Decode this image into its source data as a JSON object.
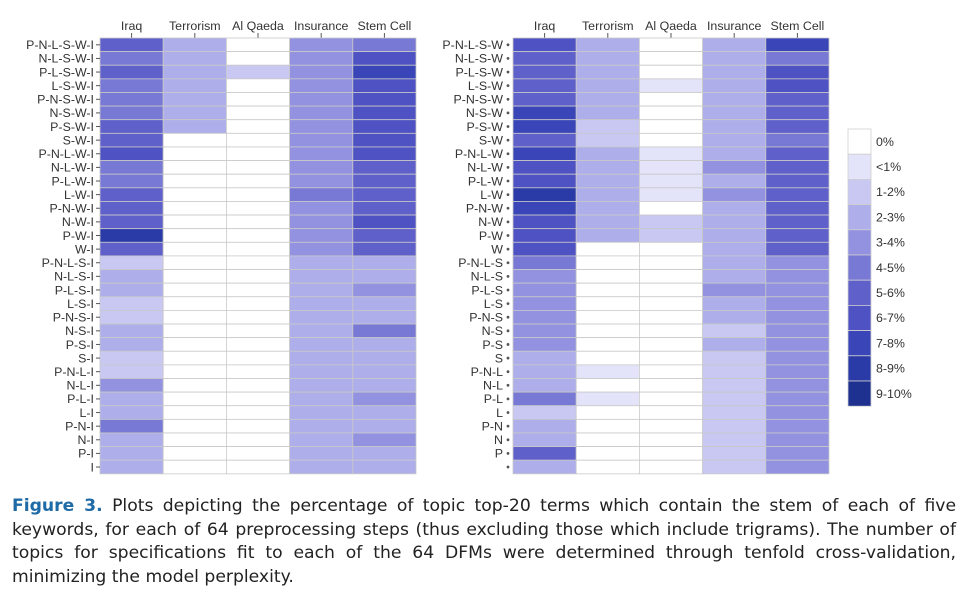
{
  "colors": {
    "scale": [
      "#ffffff",
      "#e3e3fa",
      "#c8c8f3",
      "#aeaeeb",
      "#9292e0",
      "#7878d5",
      "#6060cb",
      "#4f52c2",
      "#3a46b8",
      "#2a3aa6",
      "#1e3090"
    ],
    "caption_label": "#1d6aa6"
  },
  "chart_data": [
    {
      "type": "heatmap",
      "columns": [
        "Iraq",
        "Terrorism",
        "Al Qaeda",
        "Insurance",
        "Stem Cell"
      ],
      "rows": [
        "P-N-L-S-W-I",
        "N-L-S-W-I",
        "P-L-S-W-I",
        "L-S-W-I",
        "P-N-S-W-I",
        "N-S-W-I",
        "P-S-W-I",
        "S-W-I",
        "P-N-L-W-I",
        "N-L-W-I",
        "P-L-W-I",
        "L-W-I",
        "P-N-W-I",
        "N-W-I",
        "P-W-I",
        "W-I",
        "P-N-L-S-I",
        "N-L-S-I",
        "P-L-S-I",
        "L-S-I",
        "P-N-S-I",
        "N-S-I",
        "P-S-I",
        "S-I",
        "P-N-L-I",
        "N-L-I",
        "P-L-I",
        "L-I",
        "P-N-I",
        "N-I",
        "P-I",
        "I"
      ],
      "value_unit": "color bin index (0 = 0%, 1 = <1%, 2 = 1-2%, ... 10 = 9-10%)",
      "values": [
        [
          6,
          3,
          0,
          4,
          5
        ],
        [
          5,
          3,
          0,
          4,
          7
        ],
        [
          6,
          3,
          2,
          4,
          8
        ],
        [
          5,
          3,
          0,
          4,
          7
        ],
        [
          5,
          3,
          0,
          4,
          7
        ],
        [
          5,
          3,
          0,
          4,
          7
        ],
        [
          6,
          3,
          0,
          4,
          7
        ],
        [
          6,
          0,
          0,
          4,
          7
        ],
        [
          7,
          0,
          0,
          4,
          7
        ],
        [
          5,
          0,
          0,
          4,
          6
        ],
        [
          5,
          0,
          0,
          4,
          6
        ],
        [
          6,
          0,
          0,
          5,
          6
        ],
        [
          6,
          0,
          0,
          4,
          6
        ],
        [
          6,
          0,
          0,
          4,
          7
        ],
        [
          9,
          0,
          0,
          4,
          6
        ],
        [
          6,
          0,
          0,
          4,
          6
        ],
        [
          2,
          0,
          0,
          3,
          3
        ],
        [
          3,
          0,
          0,
          3,
          3
        ],
        [
          3,
          0,
          0,
          3,
          4
        ],
        [
          2,
          0,
          0,
          3,
          3
        ],
        [
          2,
          0,
          0,
          3,
          3
        ],
        [
          3,
          0,
          0,
          3,
          5
        ],
        [
          3,
          0,
          0,
          3,
          3
        ],
        [
          2,
          0,
          0,
          3,
          3
        ],
        [
          2,
          0,
          0,
          3,
          3
        ],
        [
          4,
          0,
          0,
          3,
          3
        ],
        [
          3,
          0,
          0,
          3,
          4
        ],
        [
          3,
          0,
          0,
          3,
          3
        ],
        [
          5,
          0,
          0,
          3,
          3
        ],
        [
          3,
          0,
          0,
          3,
          4
        ],
        [
          3,
          0,
          0,
          3,
          3
        ],
        [
          3,
          0,
          0,
          3,
          3
        ]
      ]
    },
    {
      "type": "heatmap",
      "columns": [
        "Iraq",
        "Terrorism",
        "Al Qaeda",
        "Insurance",
        "Stem Cell"
      ],
      "rows": [
        "P-N-L-S-W",
        "N-L-S-W",
        "P-L-S-W",
        "L-S-W",
        "P-N-S-W",
        "N-S-W",
        "P-S-W",
        "S-W",
        "P-N-L-W",
        "N-L-W",
        "P-L-W",
        "L-W",
        "P-N-W",
        "N-W",
        "P-W",
        "W",
        "P-N-L-S",
        "N-L-S",
        "P-L-S",
        "L-S",
        "P-N-S",
        "N-S",
        "P-S",
        "S",
        "P-N-L",
        "N-L",
        "P-L",
        "L",
        "P-N",
        "N",
        "P",
        ""
      ],
      "value_unit": "color bin index (0 = 0%, 1 = <1%, 2 = 1-2%, ... 10 = 9-10%)",
      "values": [
        [
          7,
          3,
          0,
          3,
          8
        ],
        [
          6,
          3,
          0,
          3,
          5
        ],
        [
          6,
          3,
          0,
          3,
          7
        ],
        [
          6,
          3,
          1,
          3,
          7
        ],
        [
          6,
          3,
          0,
          3,
          6
        ],
        [
          8,
          3,
          0,
          3,
          6
        ],
        [
          8,
          2,
          0,
          3,
          6
        ],
        [
          6,
          2,
          0,
          3,
          5
        ],
        [
          8,
          3,
          1,
          3,
          6
        ],
        [
          7,
          3,
          1,
          4,
          6
        ],
        [
          7,
          3,
          1,
          3,
          6
        ],
        [
          9,
          3,
          1,
          4,
          6
        ],
        [
          8,
          3,
          0,
          3,
          6
        ],
        [
          7,
          3,
          2,
          3,
          6
        ],
        [
          7,
          3,
          2,
          3,
          6
        ],
        [
          7,
          0,
          0,
          3,
          6
        ],
        [
          5,
          0,
          0,
          3,
          4
        ],
        [
          4,
          0,
          0,
          3,
          4
        ],
        [
          4,
          0,
          0,
          4,
          4
        ],
        [
          4,
          0,
          0,
          3,
          4
        ],
        [
          4,
          0,
          0,
          3,
          4
        ],
        [
          4,
          0,
          0,
          2,
          4
        ],
        [
          4,
          0,
          0,
          3,
          4
        ],
        [
          3,
          0,
          0,
          2,
          4
        ],
        [
          3,
          1,
          0,
          2,
          4
        ],
        [
          3,
          0,
          0,
          2,
          4
        ],
        [
          5,
          1,
          0,
          2,
          4
        ],
        [
          2,
          0,
          0,
          2,
          4
        ],
        [
          3,
          0,
          0,
          2,
          4
        ],
        [
          3,
          0,
          0,
          2,
          4
        ],
        [
          6,
          0,
          0,
          2,
          4
        ],
        [
          3,
          0,
          0,
          2,
          4
        ]
      ]
    }
  ],
  "legend": {
    "labels": [
      "0%",
      "<1%",
      "1-2%",
      "2-3%",
      "3-4%",
      "4-5%",
      "5-6%",
      "6-7%",
      "7-8%",
      "8-9%",
      "9-10%"
    ]
  },
  "caption": {
    "label": "Figure 3.",
    "text": "Plots depicting the percentage of topic top-20 terms which contain the stem of each of five keywords, for each of 64 preprocessing steps (thus excluding those which include trigrams). The number of topics for specifications fit to each of the 64 DFMs were determined through tenfold cross-validation, minimizing the model perplexity."
  }
}
